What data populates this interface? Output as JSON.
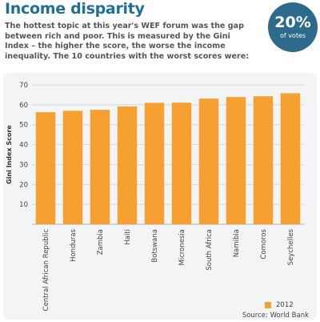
{
  "header": {
    "title": "Income disparity",
    "intro": "The hottest topic at this year's WEF forum was the gap between rich and poor.  This is measured by the Gini Index – the higher the score, the worse the income inequality. The 10 countries with the worst scores were:"
  },
  "badge": {
    "value": "20%",
    "label": "of votes"
  },
  "colors": {
    "bar": "#f5a030",
    "title": "#1f6f96",
    "badge": "#2e6a8c",
    "panel": "#f3f4f6",
    "grid": "#cccccc"
  },
  "chart_data": {
    "type": "bar",
    "categories": [
      "Central African Republic",
      "Honduras",
      "Zambia",
      "Haiti",
      "Botswana",
      "Micronesia",
      "South Africa",
      "Namibia",
      "Comoros",
      "Seychelles"
    ],
    "series": [
      {
        "name": "2012",
        "values": [
          56.3,
          57.0,
          57.5,
          59.2,
          61.0,
          61.1,
          63.1,
          63.9,
          64.3,
          65.8
        ]
      }
    ],
    "ylabel": "Gini Index Score",
    "xlabel": "",
    "ylim": [
      0,
      70
    ],
    "yticks": [
      10,
      20,
      30,
      40,
      50,
      60,
      70
    ],
    "grid": true,
    "legend": "bottom-right"
  },
  "legend": {
    "label": "2012"
  },
  "source": "Source:  World Bank"
}
